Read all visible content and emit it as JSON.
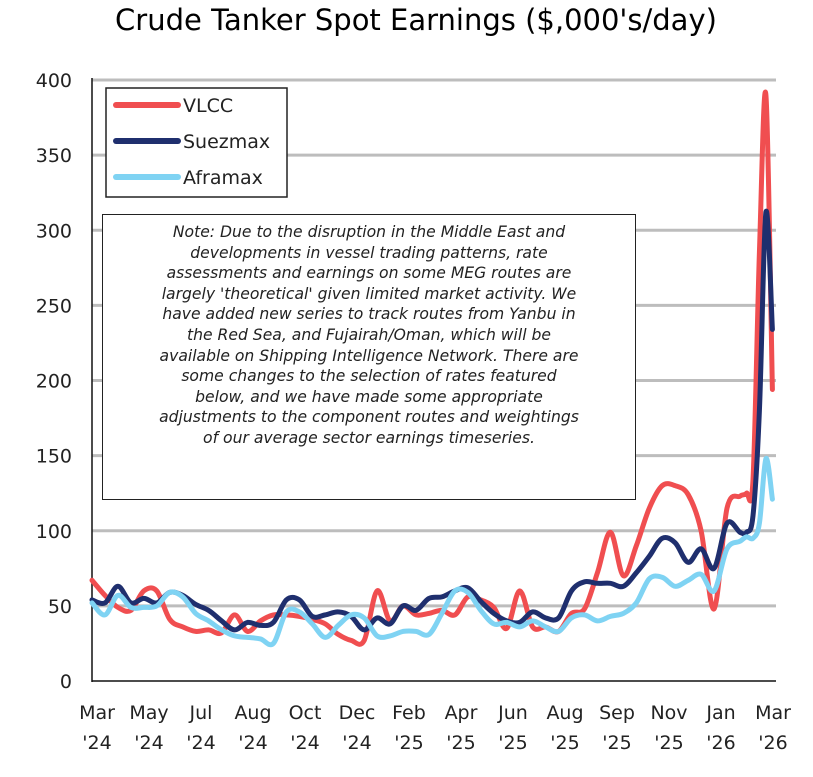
{
  "chart_data": {
    "type": "line",
    "title": "Crude Tanker Spot Earnings ($,000's/day)",
    "xlabel": "",
    "ylabel": "",
    "ylim": [
      0,
      400
    ],
    "yticks": [
      0,
      50,
      100,
      150,
      200,
      250,
      300,
      350,
      400
    ],
    "grid": true,
    "legend_position": "top-left",
    "xtick_labels": [
      [
        "Mar",
        "'24"
      ],
      [
        "May",
        "'24"
      ],
      [
        "Jul",
        "'24"
      ],
      [
        "Aug",
        "'24"
      ],
      [
        "Oct",
        "'24"
      ],
      [
        "Dec",
        "'24"
      ],
      [
        "Feb",
        "'25"
      ],
      [
        "Apr",
        "'25"
      ],
      [
        "Jun",
        "'25"
      ],
      [
        "Aug",
        "'25"
      ],
      [
        "Sep",
        "'25"
      ],
      [
        "Nov",
        "'25"
      ],
      [
        "Jan",
        "'26"
      ],
      [
        "Mar",
        "'26"
      ]
    ],
    "x": [
      "2024-02-23",
      "2024-03-08",
      "2024-03-22",
      "2024-04-05",
      "2024-04-19",
      "2024-05-03",
      "2024-05-17",
      "2024-05-31",
      "2024-06-14",
      "2024-06-28",
      "2024-07-12",
      "2024-07-26",
      "2024-08-09",
      "2024-08-23",
      "2024-09-06",
      "2024-09-20",
      "2024-10-04",
      "2024-10-18",
      "2024-11-01",
      "2024-11-15",
      "2024-11-29",
      "2024-12-13",
      "2024-12-27",
      "2025-01-10",
      "2025-01-24",
      "2025-02-07",
      "2025-02-21",
      "2025-03-07",
      "2025-03-21",
      "2025-04-04",
      "2025-04-18",
      "2025-05-02",
      "2025-05-16",
      "2025-05-30",
      "2025-06-13",
      "2025-06-27",
      "2025-07-11",
      "2025-07-25",
      "2025-08-08",
      "2025-08-22",
      "2025-09-05",
      "2025-09-19",
      "2025-10-03",
      "2025-10-17",
      "2025-10-31",
      "2025-11-14",
      "2025-11-28",
      "2025-12-12",
      "2025-12-26",
      "2026-01-09",
      "2026-01-23",
      "2026-01-30",
      "2026-02-06",
      "2026-02-13",
      "2026-02-20",
      "2026-02-27"
    ],
    "series": [
      {
        "name": "VLCC",
        "color": "#f04e50",
        "values": [
          67,
          57,
          49,
          47,
          60,
          60,
          41,
          36,
          33,
          34,
          32,
          44,
          33,
          40,
          44,
          44,
          43,
          41,
          38,
          31,
          27,
          27,
          60,
          40,
          50,
          44,
          45,
          47,
          44,
          56,
          54,
          49,
          35,
          60,
          36,
          36,
          33,
          45,
          48,
          72,
          99,
          70,
          90,
          115,
          130,
          130,
          124,
          100,
          48,
          115,
          123,
          125,
          134,
          285,
          390,
          194
        ]
      },
      {
        "name": "Suezmax",
        "color": "#1f2f6e",
        "values": [
          54,
          52,
          63,
          52,
          55,
          52,
          59,
          57,
          51,
          47,
          40,
          34,
          39,
          37,
          39,
          54,
          54,
          43,
          44,
          46,
          43,
          34,
          42,
          38,
          50,
          47,
          55,
          56,
          60,
          62,
          53,
          45,
          40,
          39,
          46,
          42,
          42,
          60,
          66,
          65,
          65,
          63,
          72,
          83,
          95,
          92,
          79,
          88,
          75,
          105,
          99,
          99,
          110,
          180,
          312,
          234
        ]
      },
      {
        "name": "Aframax",
        "color": "#7fd3f3",
        "values": [
          52,
          44,
          57,
          49,
          49,
          50,
          59,
          56,
          45,
          40,
          34,
          30,
          29,
          28,
          25,
          46,
          46,
          38,
          29,
          37,
          44,
          42,
          30,
          30,
          33,
          33,
          31,
          45,
          60,
          59,
          47,
          38,
          39,
          36,
          40,
          36,
          33,
          42,
          44,
          40,
          43,
          45,
          52,
          68,
          69,
          63,
          67,
          71,
          60,
          88,
          93,
          96,
          95,
          105,
          148,
          121
        ]
      }
    ],
    "annotation_lines": [
      "Note: Due to the disruption in the Middle East and",
      "developments in vessel trading patterns, rate",
      "assessments and earnings on some MEG routes are",
      "largely 'theoretical' given limited market activity. We",
      "have added new series to track routes from Yanbu in",
      "the Red Sea, and Fujairah/Oman, which will be",
      "available on Shipping Intelligence Network. There are",
      "some changes to the selection of rates featured",
      "below, and we have made some appropriate",
      "adjustments to the component routes and weightings",
      "of our average sector earnings timeseries."
    ]
  }
}
